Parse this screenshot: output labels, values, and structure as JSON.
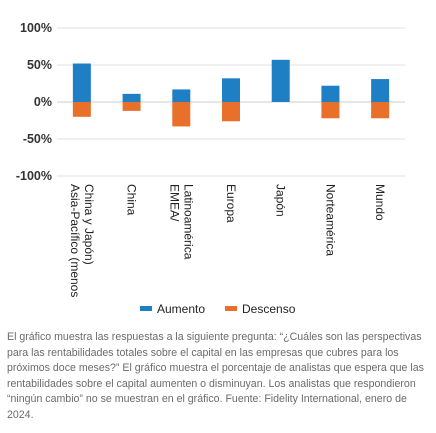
{
  "chart_data": {
    "type": "bar",
    "categories": [
      "Asia-Pacífico (menos China y Japón)",
      "China",
      "EMEA/ Latinoamérica",
      "Europa",
      "Japón",
      "Norteamérica",
      "Mundo"
    ],
    "category_lines": [
      [
        "Asia-Pacífico (menos",
        "China y Japón)"
      ],
      [
        "China"
      ],
      [
        "EMEA/",
        "Latinoamérica"
      ],
      [
        "Europa"
      ],
      [
        "Japón"
      ],
      [
        "Norteamérica"
      ],
      [
        "Mundo"
      ]
    ],
    "series": [
      {
        "name": "Aumento",
        "color": "#1f7fc4",
        "values": [
          52,
          11,
          17,
          32,
          57,
          22,
          31
        ]
      },
      {
        "name": "Descenso",
        "color": "#e8702a",
        "values": [
          -20,
          -12,
          -33,
          -26,
          0,
          -22,
          -22
        ]
      }
    ],
    "ylim": [
      -100,
      100
    ],
    "yticks": [
      100,
      50,
      0,
      -50,
      -100
    ],
    "ytick_labels": [
      "100%",
      "50%",
      "0%",
      "-50%",
      "-100%"
    ],
    "grid": "horizontal",
    "legend_position": "bottom-center",
    "title": "",
    "xlabel": "",
    "ylabel": ""
  },
  "caption": "El gráfico muestra las respuestas a la siguiente pregunta: “¿Cuáles son las perspectivas para las rentabilidades totales sobre el capital en las empresas que cubres para los próximos doce meses?” El gráfico muestra el porcentaje de analistas que espera que las rentabilidades sobre el capital aumenten o disminuyan. Los analistas que respondieron “ningún cambio” no se muestran en el gráfico. Fuente: Fidelity International, enero de 2024."
}
